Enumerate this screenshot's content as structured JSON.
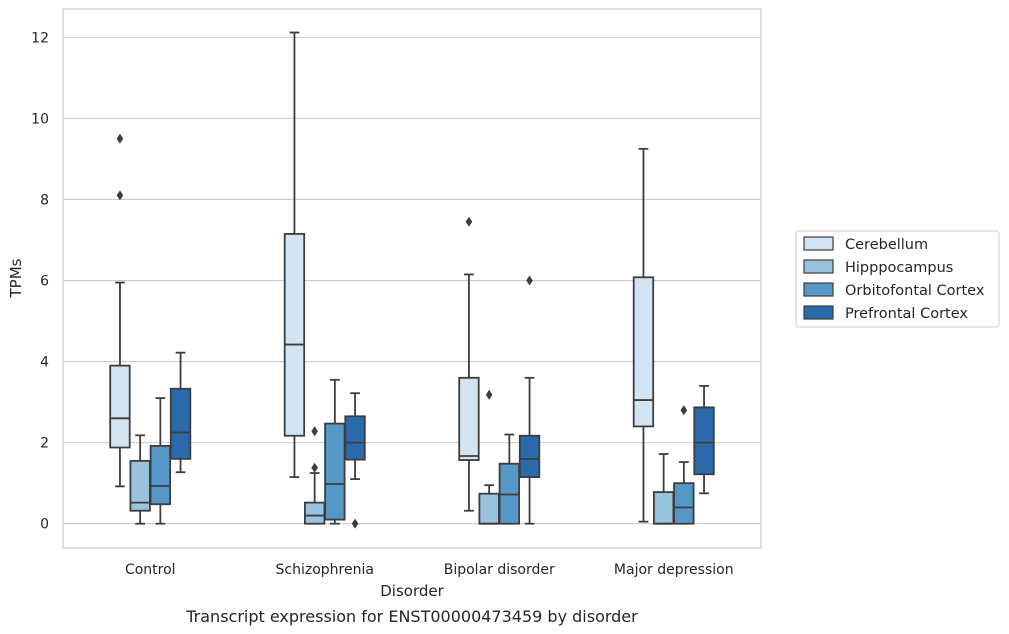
{
  "caption": "Transcript expression for ENST00000473459 by disorder",
  "chart_data": {
    "type": "box",
    "xlabel": "Disorder",
    "ylabel": "TPMs",
    "ylim": [
      -0.6,
      12.7
    ],
    "yticks": [
      0,
      2,
      4,
      6,
      8,
      10,
      12
    ],
    "grid": "horizontal",
    "legend_position": "right",
    "categories": [
      "Control",
      "Schizophrenia",
      "Bipolar disorder",
      "Major depression"
    ],
    "series": [
      {
        "name": "Cerebellum",
        "color": "#d3e3f2",
        "boxes": [
          {
            "whisker_low": 0.92,
            "q1": 1.88,
            "median": 2.6,
            "q3": 3.9,
            "whisker_high": 5.95,
            "outliers": [
              8.1,
              9.5
            ]
          },
          {
            "whisker_low": 1.15,
            "q1": 2.17,
            "median": 4.42,
            "q3": 7.15,
            "whisker_high": 12.12,
            "outliers": []
          },
          {
            "whisker_low": 0.32,
            "q1": 1.57,
            "median": 1.67,
            "q3": 3.6,
            "whisker_high": 6.15,
            "outliers": [
              7.45
            ]
          },
          {
            "whisker_low": 0.05,
            "q1": 2.4,
            "median": 3.05,
            "q3": 6.08,
            "whisker_high": 9.25,
            "outliers": []
          }
        ]
      },
      {
        "name": "Hipppocampus",
        "color": "#9ac3de",
        "boxes": [
          {
            "whisker_low": 0.0,
            "q1": 0.32,
            "median": 0.52,
            "q3": 1.55,
            "whisker_high": 2.18,
            "outliers": []
          },
          {
            "whisker_low": 0.0,
            "q1": 0.0,
            "median": 0.2,
            "q3": 0.52,
            "whisker_high": 1.25,
            "outliers": [
              1.38,
              2.28
            ]
          },
          {
            "whisker_low": 0.0,
            "q1": 0.0,
            "median": 0.0,
            "q3": 0.74,
            "whisker_high": 0.95,
            "outliers": [
              3.18
            ]
          },
          {
            "whisker_low": 0.0,
            "q1": 0.0,
            "median": 0.0,
            "q3": 0.78,
            "whisker_high": 1.72,
            "outliers": []
          }
        ]
      },
      {
        "name": "Orbitofontal Cortex",
        "color": "#5597c6",
        "boxes": [
          {
            "whisker_low": 0.0,
            "q1": 0.48,
            "median": 0.93,
            "q3": 1.92,
            "whisker_high": 3.1,
            "outliers": []
          },
          {
            "whisker_low": 0.0,
            "q1": 0.1,
            "median": 0.98,
            "q3": 2.47,
            "whisker_high": 3.55,
            "outliers": []
          },
          {
            "whisker_low": 0.0,
            "q1": 0.0,
            "median": 0.72,
            "q3": 1.48,
            "whisker_high": 2.2,
            "outliers": []
          },
          {
            "whisker_low": 0.0,
            "q1": 0.0,
            "median": 0.4,
            "q3": 1.0,
            "whisker_high": 1.52,
            "outliers": [
              2.8
            ]
          }
        ]
      },
      {
        "name": "Prefrontal Cortex",
        "color": "#2a6aab",
        "boxes": [
          {
            "whisker_low": 1.27,
            "q1": 1.6,
            "median": 2.25,
            "q3": 3.33,
            "whisker_high": 4.22,
            "outliers": []
          },
          {
            "whisker_low": 1.1,
            "q1": 1.58,
            "median": 2.0,
            "q3": 2.65,
            "whisker_high": 3.22,
            "outliers": [
              0.0
            ]
          },
          {
            "whisker_low": 0.0,
            "q1": 1.15,
            "median": 1.6,
            "q3": 2.17,
            "whisker_high": 3.6,
            "outliers": [
              6.0
            ]
          },
          {
            "whisker_low": 0.75,
            "q1": 1.22,
            "median": 2.0,
            "q3": 2.87,
            "whisker_high": 3.4,
            "outliers": []
          }
        ]
      }
    ]
  }
}
